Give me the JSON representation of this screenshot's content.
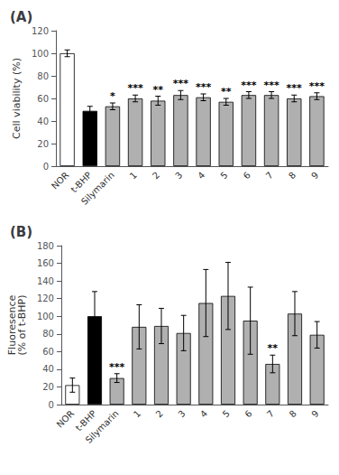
{
  "chart_data": [
    {
      "type": "bar",
      "title": "(A)",
      "categories": [
        "NOR",
        "t-BHP",
        "Silymarin",
        "1",
        "2",
        "3",
        "4",
        "5",
        "6",
        "7",
        "8",
        "9"
      ],
      "values": [
        100,
        49,
        53,
        60,
        58,
        63,
        61,
        57,
        63,
        63,
        60,
        62
      ],
      "errors": [
        3,
        4,
        3,
        3,
        4,
        4,
        3,
        3,
        3,
        3,
        3,
        3
      ],
      "significance": [
        null,
        null,
        "*",
        "***",
        "**",
        "***",
        "***",
        "**",
        "***",
        "***",
        "***",
        "***"
      ],
      "colors": [
        "white",
        "black",
        "#b0b0b0",
        "#b0b0b0",
        "#b0b0b0",
        "#b0b0b0",
        "#b0b0b0",
        "#b0b0b0",
        "#b0b0b0",
        "#b0b0b0",
        "#b0b0b0",
        "#b0b0b0"
      ],
      "ylabel": "Cell viability (%)",
      "ylim": [
        0,
        120
      ],
      "yticks": [
        0,
        20,
        40,
        60,
        80,
        100,
        120
      ],
      "grid": false
    },
    {
      "type": "bar",
      "title": "(B)",
      "categories": [
        "NOR",
        "t-BHP",
        "Silymarin",
        "1",
        "2",
        "3",
        "4",
        "5",
        "6",
        "7",
        "8",
        "9"
      ],
      "values": [
        22,
        100,
        30,
        88,
        89,
        81,
        115,
        123,
        95,
        46,
        103,
        79
      ],
      "errors": [
        8,
        28,
        5,
        25,
        20,
        20,
        38,
        38,
        38,
        10,
        25,
        15
      ],
      "significance": [
        null,
        null,
        "***",
        null,
        null,
        null,
        null,
        null,
        null,
        "**",
        null,
        null
      ],
      "colors": [
        "white",
        "black",
        "#b0b0b0",
        "#b0b0b0",
        "#b0b0b0",
        "#b0b0b0",
        "#b0b0b0",
        "#b0b0b0",
        "#b0b0b0",
        "#b0b0b0",
        "#b0b0b0",
        "#b0b0b0"
      ],
      "ylabel": "Fluoresence\n(% of t-BHP)",
      "ylim": [
        0,
        180
      ],
      "yticks": [
        0,
        20,
        40,
        60,
        80,
        100,
        120,
        140,
        160,
        180
      ],
      "grid": false
    }
  ]
}
